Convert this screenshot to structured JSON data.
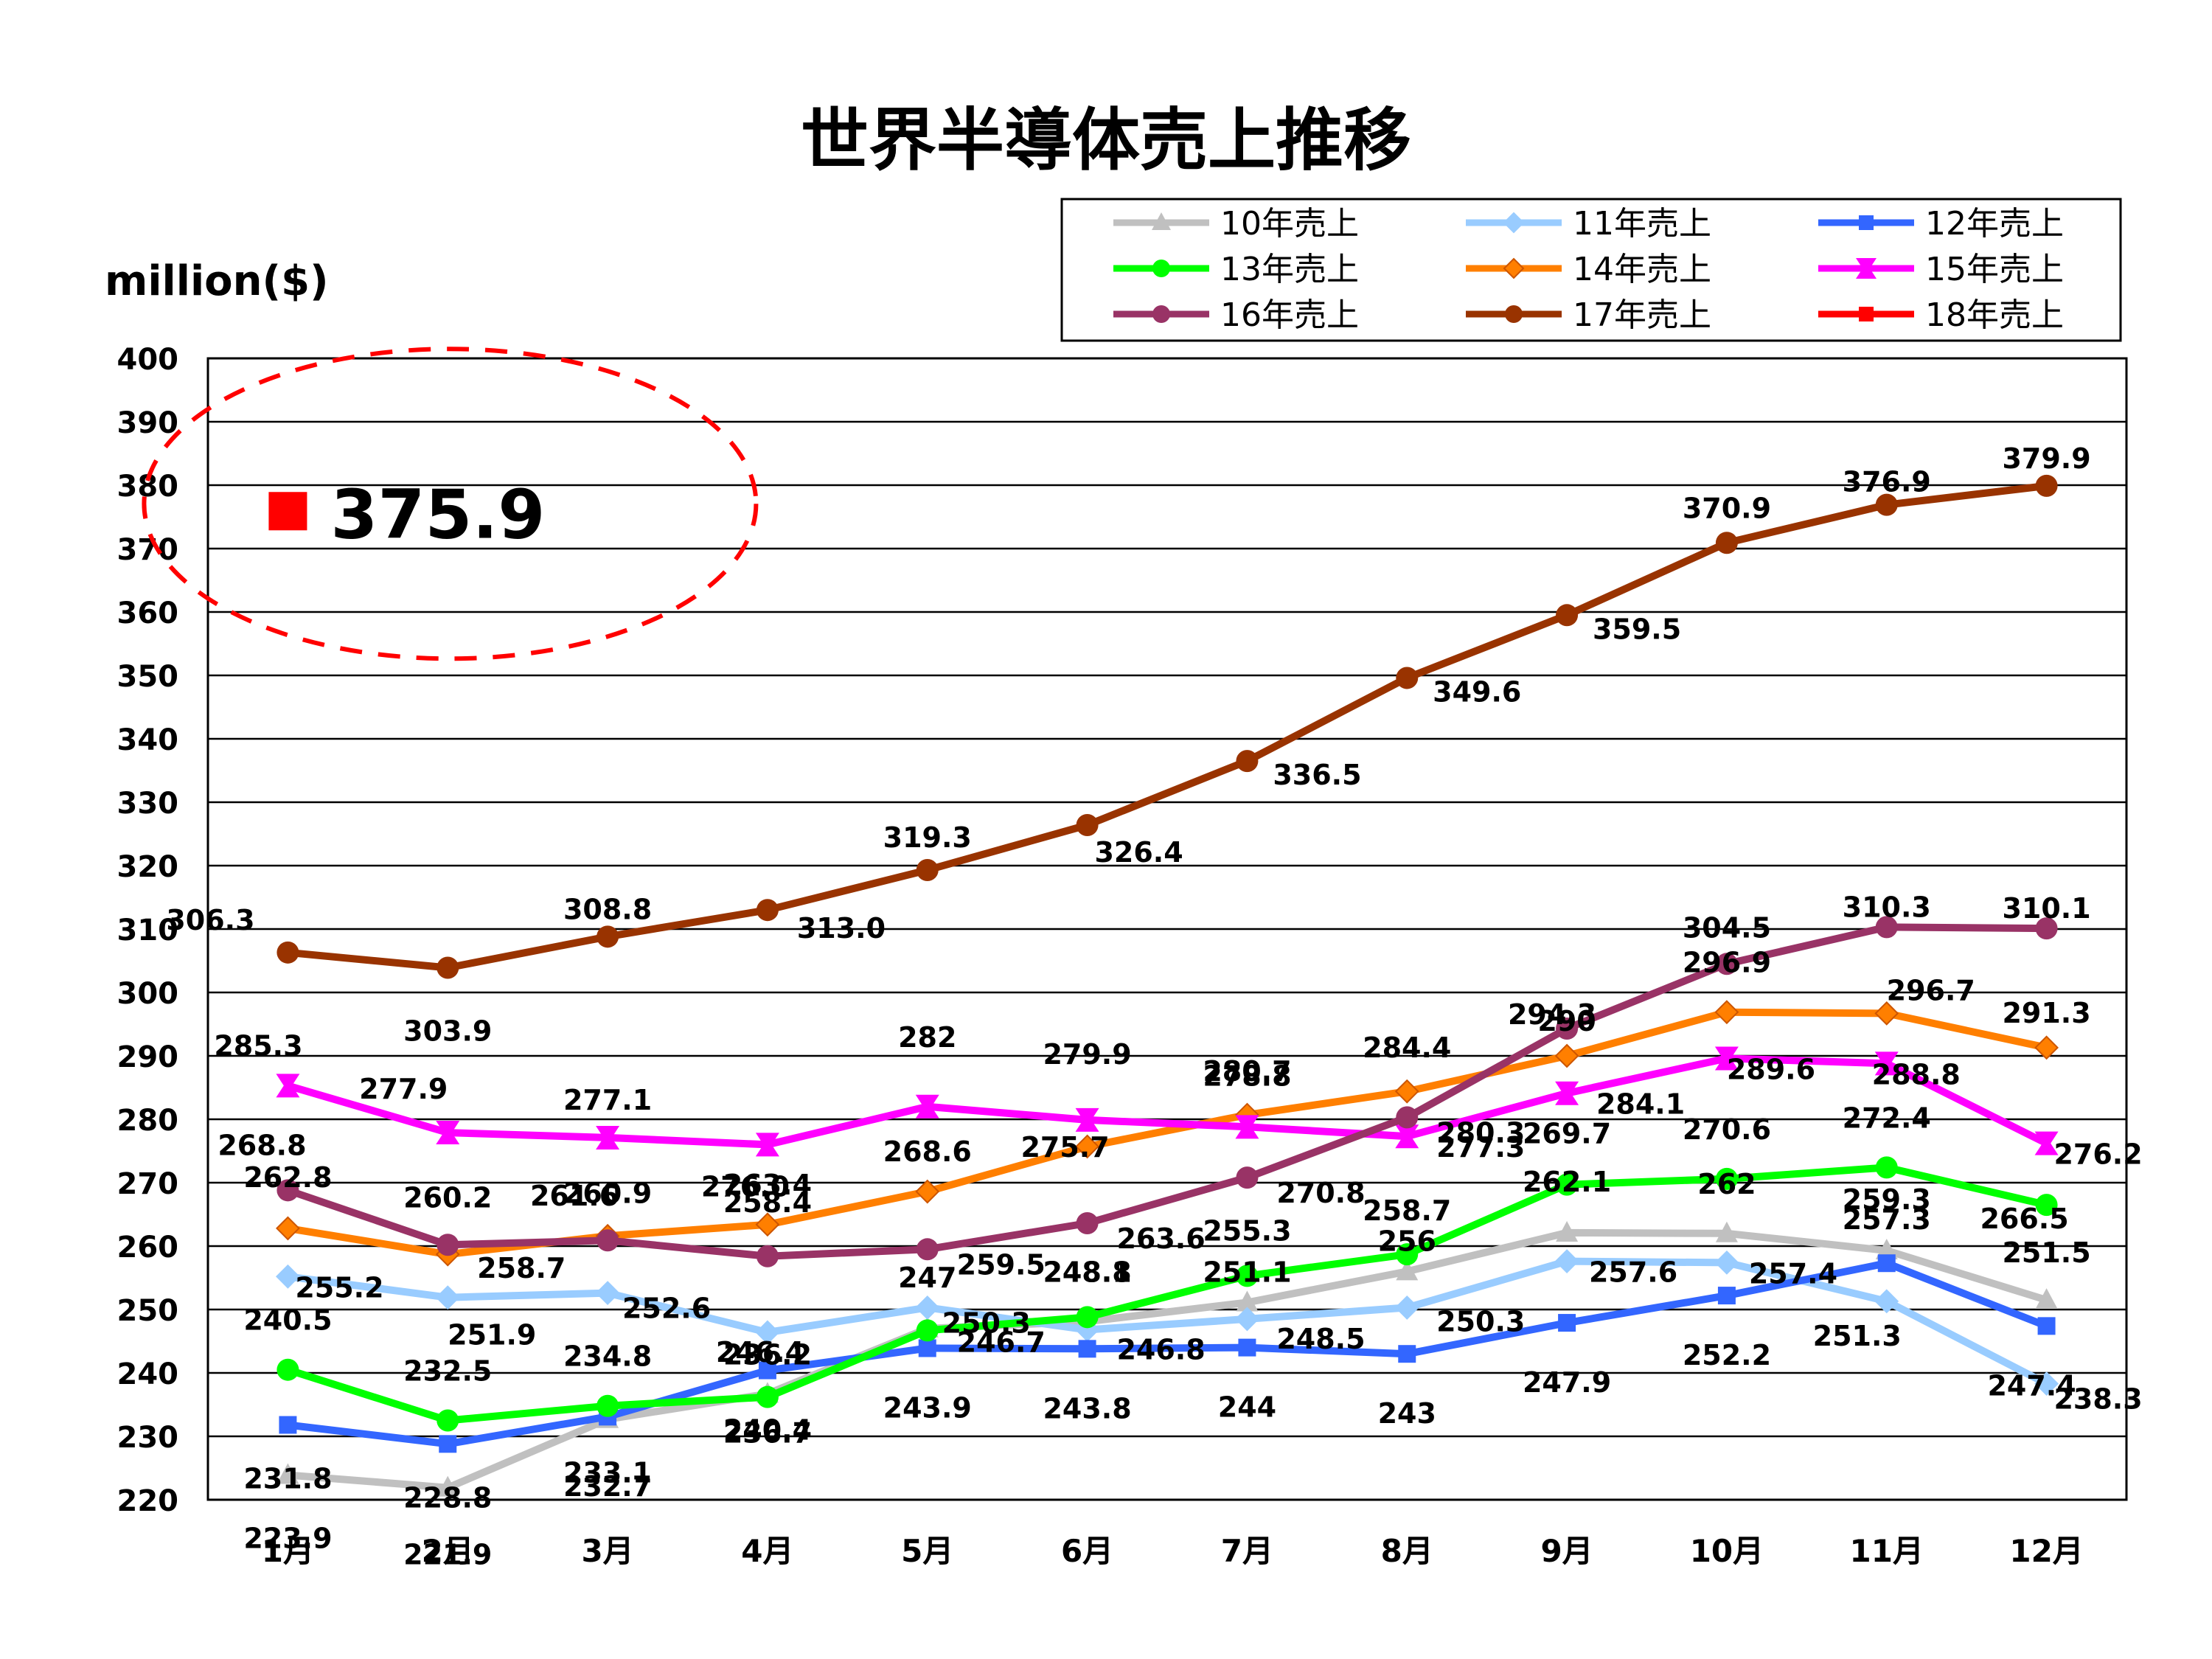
{
  "chart_data": {
    "type": "line",
    "title": "世界半導体売上推移",
    "ylabel": "million($)",
    "xlabel": "",
    "ylim": [
      220,
      400
    ],
    "y_ticks": [
      220,
      230,
      240,
      250,
      260,
      270,
      280,
      290,
      300,
      310,
      320,
      330,
      340,
      350,
      360,
      370,
      380,
      390,
      400
    ],
    "grid": true,
    "legend_position": "top-right",
    "categories": [
      "1月",
      "2月",
      "3月",
      "4月",
      "5月",
      "6月",
      "7月",
      "8月",
      "9月",
      "10月",
      "11月",
      "12月"
    ],
    "series": [
      {
        "name": "10年売上",
        "color": "#C0C0C0",
        "marker": "triangle",
        "values": [
          223.9,
          221.9,
          232.7,
          236.7,
          247,
          248.1,
          251.1,
          256,
          262.1,
          262,
          259.3,
          251.5
        ],
        "labels": [
          "223.9",
          "221.9",
          "232.7",
          "236.7",
          "247",
          "248.1",
          "251.1",
          "256",
          "262.1",
          "262",
          "259.3",
          "251.5"
        ]
      },
      {
        "name": "11年売上",
        "color": "#99CCFF",
        "marker": "diamond",
        "values": [
          255.2,
          251.9,
          252.6,
          246.4,
          250.3,
          246.8,
          248.5,
          250.3,
          257.6,
          257.4,
          251.3,
          238.3
        ],
        "labels": [
          "255.2",
          "251.9",
          "252.6",
          "246.4",
          "250.3",
          "246.8",
          "248.5",
          "250.3",
          "257.6",
          "257.4",
          "251.3",
          "238.3"
        ]
      },
      {
        "name": "12年売上",
        "color": "#3366FF",
        "marker": "square",
        "values": [
          231.8,
          228.8,
          233.1,
          240.4,
          243.9,
          243.8,
          244,
          243,
          247.9,
          252.2,
          257.3,
          247.4
        ],
        "labels": [
          "231.8",
          "228.8",
          "233.1",
          "240.4",
          "243.9",
          "243.8",
          "244",
          "243",
          "247.9",
          "252.2",
          "257.3",
          "247.4"
        ]
      },
      {
        "name": "13年売上",
        "color": "#00FF00",
        "marker": "circle",
        "values": [
          240.5,
          232.5,
          234.8,
          236.2,
          246.7,
          248.8,
          255.3,
          258.7,
          269.7,
          270.6,
          272.4,
          266.5
        ],
        "labels": [
          "240.5",
          "232.5",
          "234.8",
          "236.2",
          "246.7",
          "248.8",
          "255.3",
          "258.7",
          "269.7",
          "270.6",
          "272.4",
          "266.5"
        ]
      },
      {
        "name": "14年売上",
        "color": "#FF7F00",
        "marker": "diamond",
        "values": [
          262.8,
          258.7,
          261.6,
          263.4,
          268.6,
          275.7,
          280.7,
          284.4,
          290,
          296.9,
          296.7,
          291.3
        ],
        "labels": [
          "262.8",
          "258.7",
          "261.6",
          "263.4",
          "268.6",
          "275.7",
          "280.7",
          "284.4",
          "290",
          "296.9",
          "296.7",
          "291.3"
        ]
      },
      {
        "name": "15年売上",
        "color": "#FF00FF",
        "marker": "star",
        "values": [
          285.3,
          277.9,
          277.1,
          276.0,
          282,
          279.9,
          278.8,
          277.3,
          284.1,
          289.6,
          288.8,
          276.2
        ],
        "labels": [
          "285.3",
          "277.9",
          "277.1",
          "276.0",
          "282",
          "279.9",
          "278.8",
          "277.3",
          "284.1",
          "289.6",
          "288.8",
          "276.2"
        ]
      },
      {
        "name": "16年売上",
        "color": "#993366",
        "marker": "circle",
        "values": [
          268.8,
          260.2,
          260.9,
          258.4,
          259.5,
          263.6,
          270.8,
          280.3,
          294.3,
          304.5,
          310.3,
          310.1
        ],
        "labels": [
          "268.8",
          "260.2",
          "260.9",
          "258.4",
          "259.5",
          "263.6",
          "270.8",
          "280.3",
          "294.3",
          "304.5",
          "310.3",
          "310.1"
        ]
      },
      {
        "name": "17年売上",
        "color": "#993300",
        "marker": "circle",
        "values": [
          306.3,
          303.9,
          308.8,
          313.0,
          319.3,
          326.4,
          336.5,
          349.6,
          359.5,
          370.9,
          376.9,
          379.9
        ],
        "labels": [
          "306.3",
          "303.9",
          "308.8",
          "313.0",
          "319.3",
          "326.4",
          "336.5",
          "349.6",
          "359.5",
          "370.9",
          "376.9",
          "379.9"
        ]
      },
      {
        "name": "18年売上",
        "color": "#FF0000",
        "marker": "square",
        "values": [
          375.9,
          null,
          null,
          null,
          null,
          null,
          null,
          null,
          null,
          null,
          null,
          null
        ],
        "labels": [
          "375.9",
          "",
          "",
          "",
          "",
          "",
          "",
          "",
          "",
          "",
          "",
          ""
        ]
      }
    ],
    "annotations": [
      {
        "type": "ellipse",
        "style": "dashed",
        "color": "#FF0000",
        "around": "18年売上 1月",
        "text": "375.9"
      }
    ]
  }
}
